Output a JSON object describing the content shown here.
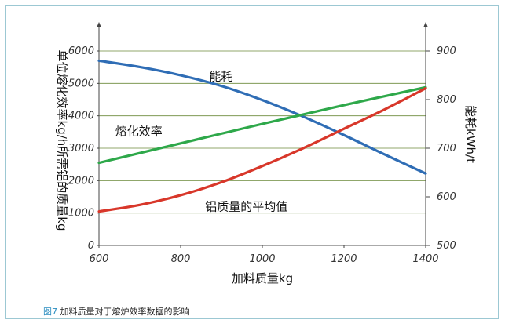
{
  "chart_data": {
    "type": "line",
    "xlabel": "加料质量kg",
    "ylabel_left": "单位熔化效率kg/h所需铝的质量kg",
    "ylabel_right": "能耗kWh/t",
    "xlim": [
      600,
      1400
    ],
    "ylim_left": [
      0,
      6000
    ],
    "ylim_right": [
      500,
      900
    ],
    "x_ticks": [
      "600",
      "800",
      "1000",
      "1200",
      "1400"
    ],
    "y_left_ticks": [
      "0",
      "1000",
      "2000",
      "3000",
      "4000",
      "5000",
      "6000"
    ],
    "y_right_ticks": [
      "500",
      "600",
      "700",
      "800",
      "900"
    ],
    "grid": "horizontal",
    "series": [
      {
        "name": "能耗",
        "axis": "right",
        "color": "#2f6db5",
        "x": [
          600,
          700,
          800,
          900,
          1000,
          1100,
          1200,
          1300,
          1400
        ],
        "y": [
          880,
          867,
          850,
          828,
          799,
          765,
          727,
          687,
          648
        ]
      },
      {
        "name": "熔化效率",
        "axis": "left",
        "color": "#2ea84a",
        "x": [
          600,
          800,
          1000,
          1200,
          1400
        ],
        "y": [
          2550,
          3150,
          3750,
          4330,
          4880
        ]
      },
      {
        "name": "铝质量的平均值",
        "axis": "left",
        "color": "#d8372a",
        "x": [
          600,
          700,
          800,
          900,
          1000,
          1100,
          1200,
          1300,
          1400
        ],
        "y": [
          1050,
          1250,
          1550,
          1950,
          2450,
          3000,
          3600,
          4200,
          4850
        ]
      }
    ],
    "annotations": {
      "energy": "能耗",
      "efficiency": "熔化效率",
      "aluminum": "铝质量的平均值"
    }
  },
  "caption": {
    "fig_no": "图7",
    "text": " 加料质量对于熔炉效率数据的影响"
  }
}
